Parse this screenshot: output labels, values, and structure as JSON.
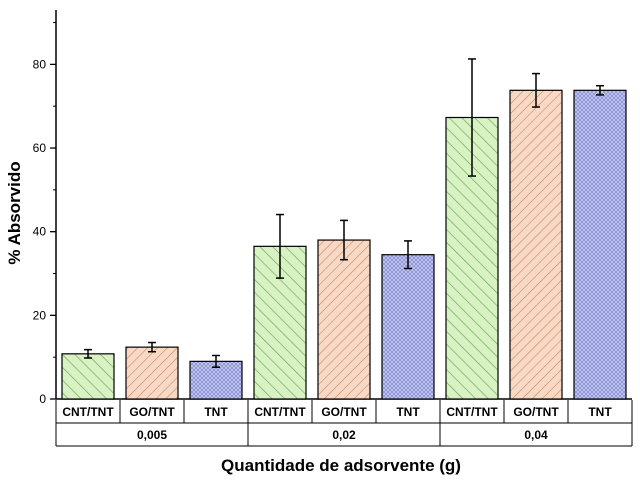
{
  "chart_data": {
    "type": "bar",
    "xlabel": "Quantidade de adsorvente (g)",
    "ylabel": "% Absorvido",
    "ylim": [
      0,
      93
    ],
    "yticks": [
      0,
      20,
      40,
      60,
      80
    ],
    "grid": false,
    "legend": "none",
    "groups": [
      {
        "label": "0,005",
        "bars": [
          {
            "category": "CNT/TNT",
            "value": 10.8,
            "error": 1.0
          },
          {
            "category": "GO/TNT",
            "value": 12.4,
            "error": 1.1
          },
          {
            "category": "TNT",
            "value": 9.0,
            "error": 1.4
          }
        ]
      },
      {
        "label": "0,02",
        "bars": [
          {
            "category": "CNT/TNT",
            "value": 36.5,
            "error": 7.6
          },
          {
            "category": "GO/TNT",
            "value": 38.0,
            "error": 4.7
          },
          {
            "category": "TNT",
            "value": 34.5,
            "error": 3.3
          }
        ]
      },
      {
        "label": "0,04",
        "bars": [
          {
            "category": "CNT/TNT",
            "value": 67.3,
            "error": 14.0
          },
          {
            "category": "GO/TNT",
            "value": 73.8,
            "error": 4.0
          },
          {
            "category": "TNT",
            "value": 73.8,
            "error": 1.1
          }
        ]
      }
    ],
    "series_styles": {
      "CNT/TNT": {
        "fill": "#d8f2c4",
        "stroke": "#73b25a",
        "pattern": "diag-wide"
      },
      "GO/TNT": {
        "fill": "#f8d9c6",
        "stroke": "#d78c64",
        "pattern": "diag-back"
      },
      "TNT": {
        "fill": "#c9cdf0",
        "stroke": "#6e74c4",
        "pattern": "cross"
      }
    }
  }
}
